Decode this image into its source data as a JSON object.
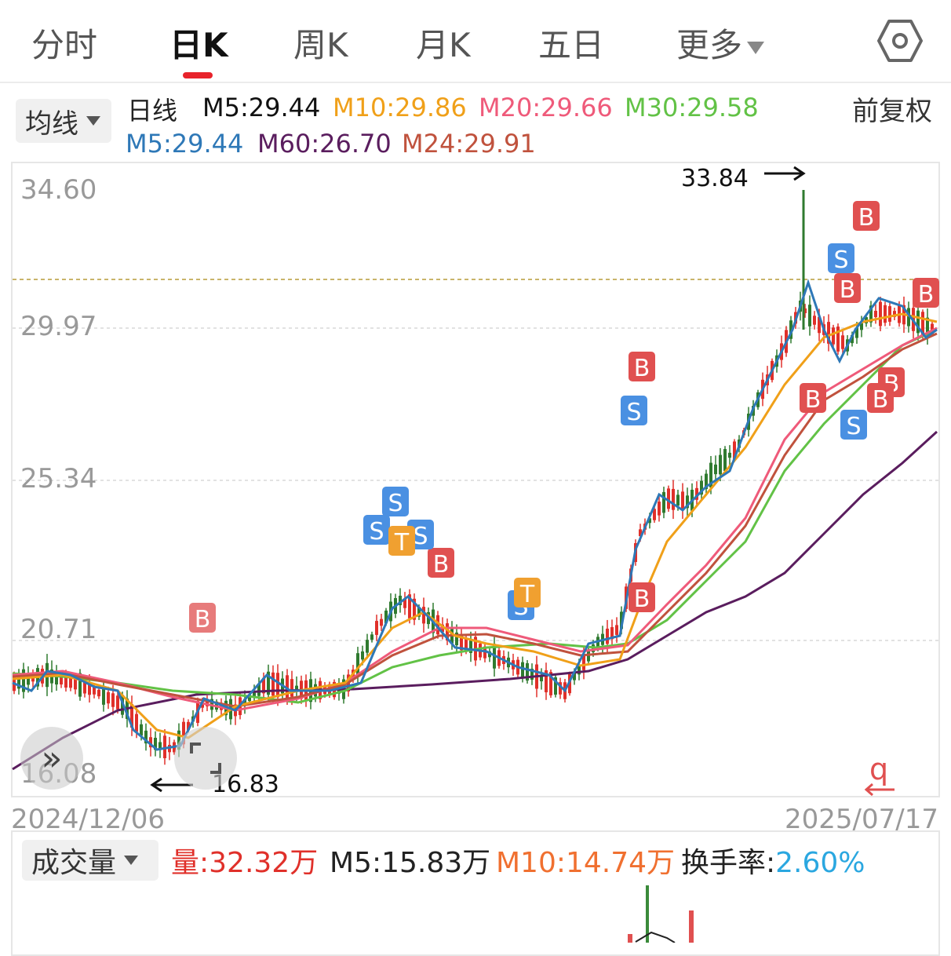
{
  "tabs": [
    {
      "label": "分时",
      "active": false
    },
    {
      "label": "日K",
      "active": true
    },
    {
      "label": "周K",
      "active": false
    },
    {
      "label": "月K",
      "active": false
    },
    {
      "label": "五日",
      "active": false
    },
    {
      "label": "更多",
      "active": false
    }
  ],
  "indicator": {
    "select_label": "均线",
    "period_label": "日线",
    "adjust_label": "前复权",
    "ma_lines": [
      {
        "text": "M5:29.44",
        "color": "#111111"
      },
      {
        "text": "M10:29.86",
        "color": "#f0a019"
      },
      {
        "text": "M20:29.66",
        "color": "#ef5a7a"
      },
      {
        "text": "M30:29.58",
        "color": "#62c246"
      },
      {
        "text": "M5:29.44",
        "color": "#2e78b7"
      },
      {
        "text": "M60:26.70",
        "color": "#5a1d5e"
      },
      {
        "text": "M24:29.91",
        "color": "#c0523d"
      }
    ]
  },
  "chart_data": {
    "type": "candlestick",
    "y_ticks": [
      "34.60",
      "29.97",
      "25.34",
      "20.71",
      "16.08"
    ],
    "ylim": [
      16.08,
      34.6
    ],
    "x_start": "2024/12/06",
    "x_end": "2025/07/17",
    "max_label": "33.84",
    "min_label": "16.83",
    "reference_line": 31.0,
    "signals": [
      {
        "text": "B",
        "color": "#e05050"
      },
      {
        "text": "S",
        "color": "#4a90e2"
      },
      {
        "text": "T",
        "color": "#f0a030"
      },
      {
        "text": "q",
        "color": "#e05050"
      }
    ]
  },
  "volume": {
    "select_label": "成交量",
    "vol_text": "量:32.32万",
    "m5_text": "M5:15.83万",
    "m10_text": "M10:14.74万",
    "turnover_label": "换手率:",
    "turnover_value": "2.60%",
    "colors": {
      "vol": "#e0302a",
      "m5": "#222222",
      "m10": "#f07030",
      "turnover": "#2aa7e0"
    }
  },
  "icons": {
    "settings": "hexagon-settings-icon",
    "expand": "double-chevron-icon",
    "fullscreen": "fullscreen-icon"
  }
}
